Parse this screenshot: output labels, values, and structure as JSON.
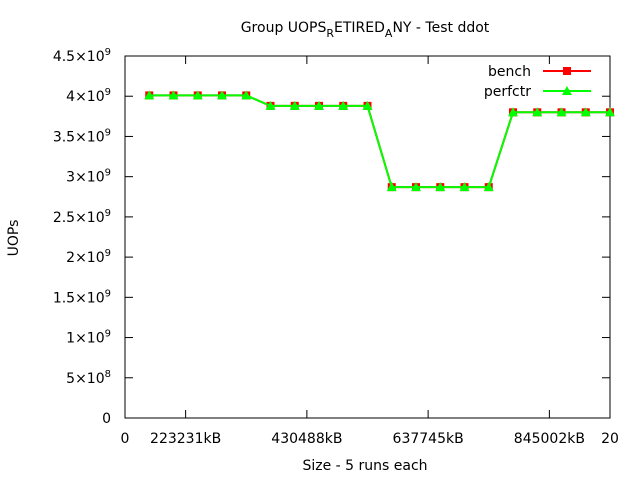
{
  "chart_data": {
    "type": "line",
    "title_parts": [
      "Group UOPS",
      "R",
      "ETIRED",
      "A",
      "NY - Test ddot"
    ],
    "x_label": "Size - 5 runs each",
    "y_label": "UOPs",
    "x": [
      1,
      2,
      3,
      4,
      5,
      6,
      7,
      8,
      9,
      10,
      11,
      12,
      13,
      14,
      15,
      16,
      17,
      18,
      19,
      20
    ],
    "series": [
      {
        "name": "bench",
        "color": "#ff0000",
        "marker": "square",
        "values": [
          4010000000,
          4010000000,
          4010000000,
          4010000000,
          4010000000,
          3880000000,
          3880000000,
          3880000000,
          3880000000,
          3880000000,
          2870000000,
          2870000000,
          2870000000,
          2870000000,
          2870000000,
          3800000000,
          3800000000,
          3800000000,
          3800000000,
          3800000000
        ]
      },
      {
        "name": "perfctr",
        "color": "#00ff00",
        "marker": "triangle",
        "values": [
          4010000000,
          4010000000,
          4010000000,
          4010000000,
          4010000000,
          3880000000,
          3880000000,
          3880000000,
          3880000000,
          3880000000,
          2870000000,
          2870000000,
          2870000000,
          2870000000,
          2870000000,
          3800000000,
          3800000000,
          3800000000,
          3800000000,
          3800000000
        ]
      }
    ],
    "xlim": [
      0,
      20
    ],
    "xticks": [
      0,
      {
        "value": 2.5,
        "label": "223231kB"
      },
      {
        "value": 7.5,
        "label": "430488kB"
      },
      {
        "value": 12.5,
        "label": "637745kB"
      },
      {
        "value": 17.5,
        "label": "845002kB"
      },
      20
    ],
    "ylim": [
      0,
      4500000000
    ],
    "yticks": [
      0,
      {
        "value": 500000000,
        "label": "5×10",
        "exponent": "8"
      },
      {
        "value": 1000000000,
        "label": "1×10",
        "exponent": "9"
      },
      {
        "value": 1500000000,
        "label": "1.5×10",
        "exponent": "9"
      },
      {
        "value": 2000000000,
        "label": "2×10",
        "exponent": "9"
      },
      {
        "value": 2500000000,
        "label": "2.5×10",
        "exponent": "9"
      },
      {
        "value": 3000000000,
        "label": "3×10",
        "exponent": "9"
      },
      {
        "value": 3500000000,
        "label": "3.5×10",
        "exponent": "9"
      },
      {
        "value": 4000000000,
        "label": "4×10",
        "exponent": "9"
      },
      {
        "value": 4500000000,
        "label": "4.5×10",
        "exponent": "9"
      }
    ],
    "legend": "upper right",
    "grid": false
  }
}
